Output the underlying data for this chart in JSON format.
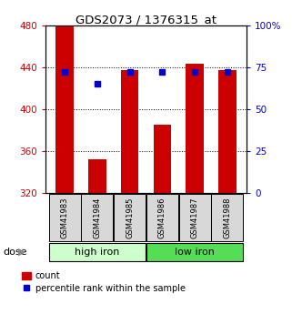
{
  "title": "GDS2073 / 1376315_at",
  "samples": [
    "GSM41983",
    "GSM41984",
    "GSM41985",
    "GSM41986",
    "GSM41987",
    "GSM41988"
  ],
  "bar_values": [
    480,
    352,
    437,
    385,
    443,
    437
  ],
  "bar_baseline": 320,
  "bar_color": "#cc0000",
  "dot_values": [
    72,
    65,
    72,
    72,
    72,
    72
  ],
  "dot_color": "#0000cc",
  "left_ylim": [
    320,
    480
  ],
  "right_ylim": [
    0,
    100
  ],
  "left_yticks": [
    320,
    360,
    400,
    440,
    480
  ],
  "right_yticks": [
    0,
    25,
    50,
    75,
    100
  ],
  "right_yticklabels": [
    "0",
    "25",
    "50",
    "75",
    "100%"
  ],
  "groups": [
    {
      "label": "high iron",
      "indices": [
        0,
        1,
        2
      ],
      "color": "#ccffcc"
    },
    {
      "label": "low iron",
      "indices": [
        3,
        4,
        5
      ],
      "color": "#55dd55"
    }
  ],
  "dose_label": "dose",
  "legend_count_label": "count",
  "legend_pct_label": "percentile rank within the sample",
  "left_tick_color": "#cc0000",
  "right_tick_color": "#0000cc"
}
